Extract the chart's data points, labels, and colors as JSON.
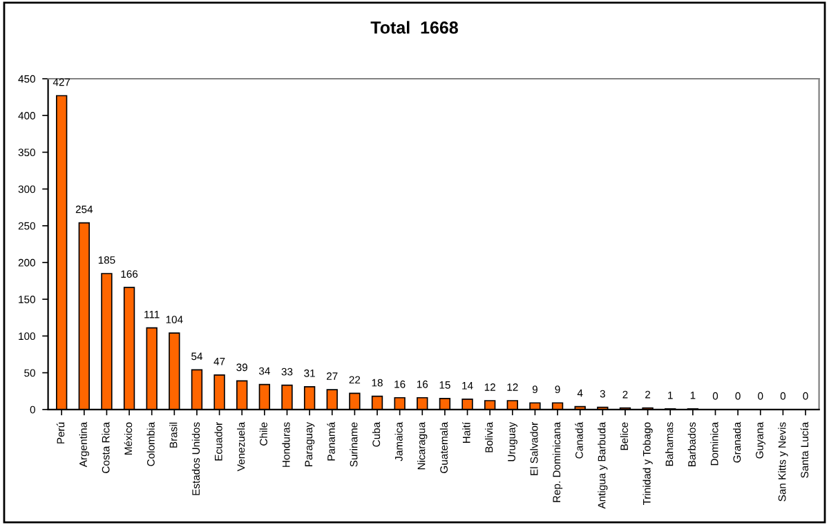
{
  "chart_data": {
    "type": "bar",
    "title": "Total  1668",
    "categories": [
      "Perú",
      "Argentina",
      "Costa Rica",
      "México",
      "Colombia",
      "Brasil",
      "Estados Unidos",
      "Ecuador",
      "Venezuela",
      "Chile",
      "Honduras",
      "Paraguay",
      "Panamá",
      "Suriname",
      "Cuba",
      "Jamaica",
      "Nicaragua",
      "Guatemala",
      "Haití",
      "Bolivia",
      "Uruguay",
      "El Salvador",
      "Rep. Dominicana",
      "Canadá",
      "Antigua y Barbuda",
      "Belice",
      "Trinidad y Tobago",
      "Bahamas",
      "Barbados",
      "Dominica",
      "Granada",
      "Guyana",
      "San Kitts y Nevis",
      "Santa Lucía"
    ],
    "values": [
      427,
      254,
      185,
      166,
      111,
      104,
      54,
      47,
      39,
      34,
      33,
      31,
      27,
      22,
      18,
      16,
      16,
      15,
      14,
      12,
      12,
      9,
      9,
      4,
      3,
      2,
      2,
      1,
      1,
      0,
      0,
      0,
      0,
      0
    ],
    "color": "#ff6600",
    "ylim": [
      0,
      450
    ],
    "yticks": [
      0,
      50,
      100,
      150,
      200,
      250,
      300,
      350,
      400,
      450
    ],
    "grid": false,
    "data_labels": true
  }
}
